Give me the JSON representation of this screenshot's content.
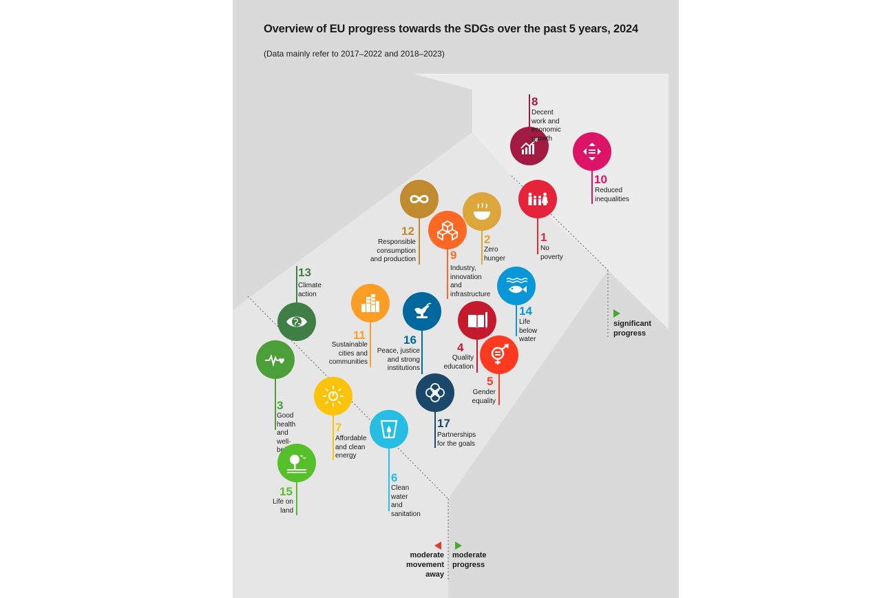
{
  "title": "Overview of EU progress towards the SDGs over the past 5 years, 2024",
  "subtitle": "(Data mainly refer to 2017–2022 and 2018–2023)",
  "markers": {
    "significant": "significant\nprogress",
    "moderate_progress": "moderate\nprogress",
    "moderate_away": "moderate\nmovement\naway"
  },
  "marker_colors": {
    "progress": "#4aa832",
    "away": "#e23a2a"
  },
  "goals": [
    {
      "id": "8",
      "number": "8",
      "label": "Decent work and\neconomic growth",
      "color": "#a21942",
      "icon": "growth-chart-icon"
    },
    {
      "id": "10",
      "number": "10",
      "label": "Reduced\ninequalities",
      "color": "#dd1367",
      "icon": "equality-arrows-icon"
    },
    {
      "id": "1",
      "number": "1",
      "label": "No poverty",
      "color": "#e5243b",
      "icon": "family-icon"
    },
    {
      "id": "12",
      "number": "12",
      "label": "Responsible\nconsumption\nand production",
      "color": "#bf8b2e",
      "icon": "infinity-icon"
    },
    {
      "id": "2",
      "number": "2",
      "label": "Zero\nhunger",
      "color": "#dda63a",
      "icon": "bowl-icon"
    },
    {
      "id": "9",
      "number": "9",
      "label": "Industry,\ninnovation\nand\ninfrastructure",
      "color": "#fd6925",
      "icon": "cubes-icon"
    },
    {
      "id": "13",
      "number": "13",
      "label": "Climate\naction",
      "color": "#3f7e44",
      "icon": "eye-globe-icon"
    },
    {
      "id": "11",
      "number": "11",
      "label": "Sustainable\ncities and\ncommunities",
      "color": "#fd9d24",
      "icon": "city-icon"
    },
    {
      "id": "16",
      "number": "16",
      "label": "Peace, justice\nand strong\ninstitutions",
      "color": "#00689d",
      "icon": "dove-gavel-icon"
    },
    {
      "id": "4",
      "number": "4",
      "label": "Quality\neducation",
      "color": "#c5192d",
      "icon": "book-pencil-icon"
    },
    {
      "id": "14",
      "number": "14",
      "label": "Life below\nwater",
      "color": "#0a97d9",
      "icon": "fish-icon"
    },
    {
      "id": "5",
      "number": "5",
      "label": "Gender\nequality",
      "color": "#ff3a21",
      "icon": "gender-icon"
    },
    {
      "id": "3",
      "number": "3",
      "label": "Good health\nand well-being",
      "color": "#4c9f38",
      "icon": "heartbeat-icon"
    },
    {
      "id": "7",
      "number": "7",
      "label": "Affordable\nand clean\nenergy",
      "color": "#fcc30b",
      "icon": "sun-power-icon"
    },
    {
      "id": "17",
      "number": "17",
      "label": "Partnerships\nfor the goals",
      "color": "#19486a",
      "icon": "rings-icon"
    },
    {
      "id": "6",
      "number": "6",
      "label": "Clean water\nand\nsanitation",
      "color": "#26bde2",
      "icon": "water-glass-icon"
    },
    {
      "id": "15",
      "number": "15",
      "label": "Life on\nland",
      "color": "#56c02b",
      "icon": "tree-icon"
    }
  ]
}
